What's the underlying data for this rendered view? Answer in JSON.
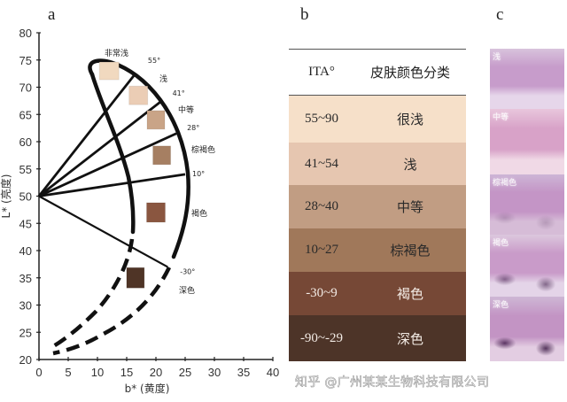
{
  "panels": {
    "a": {
      "letter": "a"
    },
    "b": {
      "letter": "b"
    },
    "c": {
      "letter": "c"
    }
  },
  "chart_data": {
    "type": "diagram-scatter",
    "title": "",
    "xlabel": "b* (黄度)",
    "ylabel": "L* (亮度)",
    "xlim": [
      0,
      40
    ],
    "ylim": [
      20,
      80
    ],
    "xticks": [
      0,
      5,
      10,
      15,
      20,
      25,
      30,
      35,
      40
    ],
    "yticks": [
      20,
      25,
      30,
      35,
      40,
      45,
      50,
      55,
      60,
      65,
      70,
      75,
      80
    ],
    "grid": false,
    "origin_point": {
      "b": 0,
      "L": 50
    },
    "ita_boundaries": [
      {
        "angle_label": "55°",
        "end": {
          "b": 16.5,
          "L": 72.5
        }
      },
      {
        "angle_label": "41°",
        "end": {
          "b": 21,
          "L": 67.5
        }
      },
      {
        "angle_label": "28°",
        "end": {
          "b": 23.5,
          "L": 61.5
        }
      },
      {
        "angle_label": "10°",
        "end": {
          "b": 25,
          "L": 54
        }
      },
      {
        "angle_label": "-30°",
        "end": {
          "b": 22,
          "L": 37
        }
      }
    ],
    "categories": [
      {
        "label": "非常浅",
        "swatch_center": {
          "b": 12,
          "L": 73
        },
        "color": "#f1d9bf"
      },
      {
        "label": "浅",
        "swatch_center": {
          "b": 17,
          "L": 68.5
        },
        "color": "#ebcdb5"
      },
      {
        "label": "中等",
        "swatch_center": {
          "b": 20,
          "L": 64
        },
        "color": "#c9a487"
      },
      {
        "label": "棕褐色",
        "swatch_center": {
          "b": 21,
          "L": 57.5
        },
        "color": "#a67f62"
      },
      {
        "label": "褐色",
        "swatch_center": {
          "b": 20,
          "L": 47
        },
        "color": "#8a5640"
      },
      {
        "label": "深色",
        "swatch_center": {
          "b": 16.5,
          "L": 35
        },
        "color": "#4f3426"
      }
    ]
  },
  "table": {
    "headers": [
      "ITA°",
      "皮肤颜色分类"
    ],
    "rows": [
      {
        "ita": "55~90",
        "category": "很浅",
        "bg": "#f6e0c9",
        "fg": "#2a2a2a"
      },
      {
        "ita": "41~54",
        "category": "浅",
        "bg": "#e6c6b0",
        "fg": "#2a2a2a"
      },
      {
        "ita": "28~40",
        "category": "中等",
        "bg": "#c19d83",
        "fg": "#2a2a2a"
      },
      {
        "ita": "10~27",
        "category": "棕褐色",
        "bg": "#a0785a",
        "fg": "#2a2a2a"
      },
      {
        "ita": "-30~9",
        "category": "褐色",
        "bg": "#764836",
        "fg": "#f3ebe5"
      },
      {
        "ita": "-90~-29",
        "category": "深色",
        "bg": "#4d3428",
        "fg": "#f3ebe5"
      }
    ]
  },
  "histology": {
    "strips": [
      {
        "label": "浅",
        "height": 68
      },
      {
        "label": "中等",
        "height": 74
      },
      {
        "label": "棕褐色",
        "height": 68
      },
      {
        "label": "褐色",
        "height": 70
      },
      {
        "label": "深色",
        "height": 73
      }
    ]
  },
  "watermark": "知乎 @广州某某生物科技有限公司"
}
